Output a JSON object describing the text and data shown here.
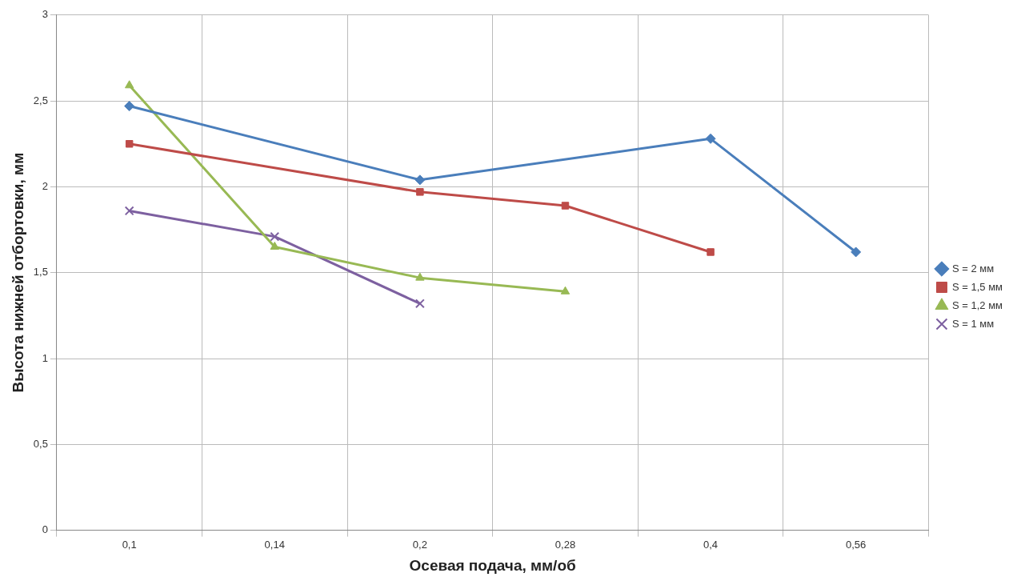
{
  "chart_data": {
    "type": "line",
    "xlabel": "Осевая подача, мм/об",
    "ylabel": "Высота нижней отбортовки, мм",
    "categories": [
      "0,1",
      "0,14",
      "0,2",
      "0,28",
      "0,4",
      "0,56"
    ],
    "ylim": [
      0,
      3
    ],
    "yticks": [
      0,
      {
        "value": 0.5,
        "label": "0,5"
      },
      1,
      {
        "value": 1.5,
        "label": "1,5"
      },
      2,
      {
        "value": 2.5,
        "label": "2,5"
      },
      3
    ],
    "grid": true,
    "legend": "right",
    "series": [
      {
        "name": "S = 2 мм",
        "color": "#4a7ebb",
        "marker": "diamond",
        "values": [
          2.47,
          null,
          2.04,
          null,
          2.28,
          1.62
        ]
      },
      {
        "name": "S = 1,5 мм",
        "color": "#be4b48",
        "marker": "square",
        "values": [
          2.25,
          null,
          1.97,
          1.89,
          1.62,
          null
        ]
      },
      {
        "name": "S = 1,2 мм",
        "color": "#98b954",
        "marker": "triangle",
        "values": [
          2.59,
          1.65,
          1.47,
          1.39,
          null,
          null
        ]
      },
      {
        "name": "S = 1 мм",
        "color": "#7d60a0",
        "marker": "cross",
        "values": [
          1.86,
          1.71,
          1.32,
          null,
          null,
          null
        ]
      }
    ]
  }
}
